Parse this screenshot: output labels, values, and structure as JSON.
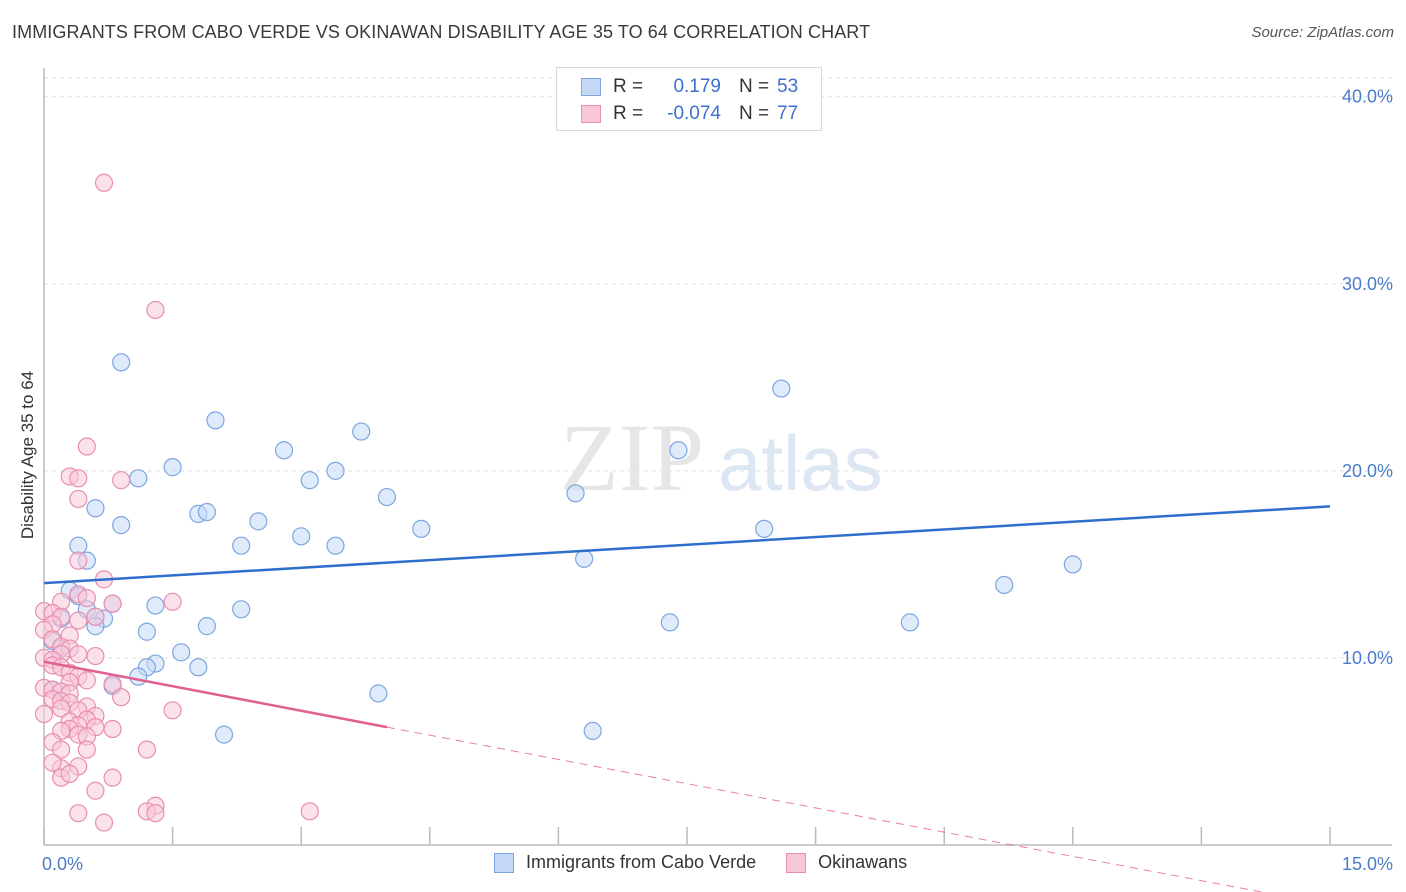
{
  "title": "IMMIGRANTS FROM CABO VERDE VS OKINAWAN DISABILITY AGE 35 TO 64 CORRELATION CHART",
  "source": "Source: ZipAtlas.com",
  "watermark": {
    "zip": "ZIP",
    "atlas": "atlas"
  },
  "legend": {
    "rows": [
      {
        "r_label": "R =",
        "r_value": "0.179",
        "n_label": "N =",
        "n_value": "53",
        "color": "#7ea6e0",
        "fill": "#c5d8f5"
      },
      {
        "r_label": "R =",
        "r_value": "-0.074",
        "n_label": "N =",
        "n_value": "77",
        "color": "#e88fb0",
        "fill": "#f8c8d8"
      }
    ]
  },
  "bottom_legend": [
    {
      "label": "Immigrants from Cabo Verde",
      "color": "#7ea6e0",
      "fill": "#c5d8f5"
    },
    {
      "label": "Okinawans",
      "color": "#e88fb0",
      "fill": "#f8c8d8"
    }
  ],
  "chart_data": {
    "type": "scatter",
    "title": "IMMIGRANTS FROM CABO VERDE VS OKINAWAN DISABILITY AGE 35 TO 64 CORRELATION CHART",
    "xlabel": "",
    "ylabel": "Disability Age 35 to 64",
    "xlim": [
      0,
      15
    ],
    "ylim": [
      0,
      41
    ],
    "x_tick_labels": [
      "0.0%",
      "15.0%"
    ],
    "y_tick_labels": [
      "10.0%",
      "20.0%",
      "30.0%",
      "40.0%"
    ],
    "y_ticks": [
      10,
      20,
      30,
      40
    ],
    "series": [
      {
        "name": "Immigrants from Cabo Verde",
        "color": "#3a78d0",
        "fill": "#c5d8f5",
        "points": [
          [
            0.9,
            25.8
          ],
          [
            2.0,
            22.7
          ],
          [
            3.7,
            22.1
          ],
          [
            8.6,
            24.4
          ],
          [
            7.4,
            21.1
          ],
          [
            2.8,
            21.1
          ],
          [
            1.5,
            20.2
          ],
          [
            1.1,
            19.6
          ],
          [
            3.1,
            19.5
          ],
          [
            3.4,
            20.0
          ],
          [
            4.0,
            18.6
          ],
          [
            6.2,
            18.8
          ],
          [
            0.6,
            18.0
          ],
          [
            1.8,
            17.7
          ],
          [
            1.9,
            17.8
          ],
          [
            0.9,
            17.1
          ],
          [
            2.5,
            17.3
          ],
          [
            4.4,
            16.9
          ],
          [
            8.4,
            16.9
          ],
          [
            3.0,
            16.5
          ],
          [
            2.3,
            16.0
          ],
          [
            3.4,
            16.0
          ],
          [
            0.4,
            16.0
          ],
          [
            0.5,
            15.2
          ],
          [
            6.3,
            15.3
          ],
          [
            12.0,
            15.0
          ],
          [
            11.2,
            13.9
          ],
          [
            0.3,
            13.6
          ],
          [
            0.4,
            13.3
          ],
          [
            0.8,
            12.9
          ],
          [
            1.3,
            12.8
          ],
          [
            2.3,
            12.6
          ],
          [
            0.5,
            12.6
          ],
          [
            0.2,
            12.1
          ],
          [
            0.6,
            12.2
          ],
          [
            0.7,
            12.1
          ],
          [
            0.6,
            11.7
          ],
          [
            1.2,
            11.4
          ],
          [
            1.9,
            11.7
          ],
          [
            7.3,
            11.9
          ],
          [
            10.1,
            11.9
          ],
          [
            0.1,
            10.9
          ],
          [
            0.2,
            10.5
          ],
          [
            1.6,
            10.3
          ],
          [
            1.3,
            9.7
          ],
          [
            1.2,
            9.5
          ],
          [
            1.8,
            9.5
          ],
          [
            1.1,
            9.0
          ],
          [
            0.8,
            8.5
          ],
          [
            3.9,
            8.1
          ],
          [
            0.1,
            8.3
          ],
          [
            2.1,
            5.9
          ],
          [
            6.4,
            6.1
          ]
        ]
      },
      {
        "name": "Okinawans",
        "color": "#e06090",
        "fill": "#f8c8d8",
        "points": [
          [
            0.7,
            35.4
          ],
          [
            1.3,
            28.6
          ],
          [
            0.5,
            21.3
          ],
          [
            0.3,
            19.7
          ],
          [
            0.4,
            19.6
          ],
          [
            0.9,
            19.5
          ],
          [
            0.4,
            18.5
          ],
          [
            0.4,
            15.2
          ],
          [
            0.7,
            14.2
          ],
          [
            0.4,
            13.4
          ],
          [
            0.5,
            13.2
          ],
          [
            0.2,
            13.0
          ],
          [
            1.5,
            13.0
          ],
          [
            0.8,
            12.9
          ],
          [
            0.0,
            12.5
          ],
          [
            0.1,
            12.4
          ],
          [
            0.2,
            12.2
          ],
          [
            0.6,
            12.2
          ],
          [
            0.4,
            12.0
          ],
          [
            0.1,
            11.8
          ],
          [
            0.0,
            11.5
          ],
          [
            0.3,
            11.2
          ],
          [
            0.1,
            11.0
          ],
          [
            0.2,
            10.6
          ],
          [
            0.3,
            10.5
          ],
          [
            0.2,
            10.2
          ],
          [
            0.4,
            10.2
          ],
          [
            0.6,
            10.1
          ],
          [
            0.0,
            10.0
          ],
          [
            0.1,
            9.9
          ],
          [
            0.1,
            9.6
          ],
          [
            0.2,
            9.5
          ],
          [
            0.3,
            9.2
          ],
          [
            0.4,
            9.0
          ],
          [
            0.5,
            8.8
          ],
          [
            0.3,
            8.7
          ],
          [
            0.8,
            8.6
          ],
          [
            0.0,
            8.4
          ],
          [
            0.1,
            8.3
          ],
          [
            0.2,
            8.2
          ],
          [
            0.3,
            8.1
          ],
          [
            0.9,
            7.9
          ],
          [
            0.1,
            7.8
          ],
          [
            0.2,
            7.7
          ],
          [
            0.3,
            7.6
          ],
          [
            0.5,
            7.4
          ],
          [
            0.2,
            7.3
          ],
          [
            0.4,
            7.2
          ],
          [
            1.5,
            7.2
          ],
          [
            0.0,
            7.0
          ],
          [
            0.6,
            6.9
          ],
          [
            0.5,
            6.7
          ],
          [
            0.3,
            6.6
          ],
          [
            0.4,
            6.4
          ],
          [
            0.3,
            6.2
          ],
          [
            0.6,
            6.3
          ],
          [
            0.8,
            6.2
          ],
          [
            0.2,
            6.1
          ],
          [
            0.4,
            5.9
          ],
          [
            0.5,
            5.8
          ],
          [
            0.1,
            5.5
          ],
          [
            0.2,
            5.1
          ],
          [
            0.5,
            5.1
          ],
          [
            1.2,
            5.1
          ],
          [
            0.2,
            4.1
          ],
          [
            0.4,
            4.2
          ],
          [
            0.2,
            3.6
          ],
          [
            0.8,
            3.6
          ],
          [
            0.6,
            2.9
          ],
          [
            1.3,
            2.1
          ],
          [
            1.2,
            1.8
          ],
          [
            1.3,
            1.7
          ],
          [
            0.4,
            1.7
          ],
          [
            0.7,
            1.2
          ],
          [
            3.1,
            1.8
          ],
          [
            0.3,
            3.8
          ],
          [
            0.1,
            4.4
          ]
        ]
      }
    ],
    "trend_lines": [
      {
        "series": "Immigrants from Cabo Verde",
        "x": [
          0.0,
          15.0
        ],
        "y": [
          14.0,
          18.1
        ],
        "style": "solid"
      },
      {
        "series": "Okinawans",
        "x": [
          0.0,
          4.0
        ],
        "y": [
          9.8,
          6.3
        ],
        "style": "solid"
      },
      {
        "series": "Okinawans",
        "x": [
          4.0,
          15.0
        ],
        "y": [
          6.3,
          -3.2
        ],
        "style": "dashed"
      }
    ]
  }
}
